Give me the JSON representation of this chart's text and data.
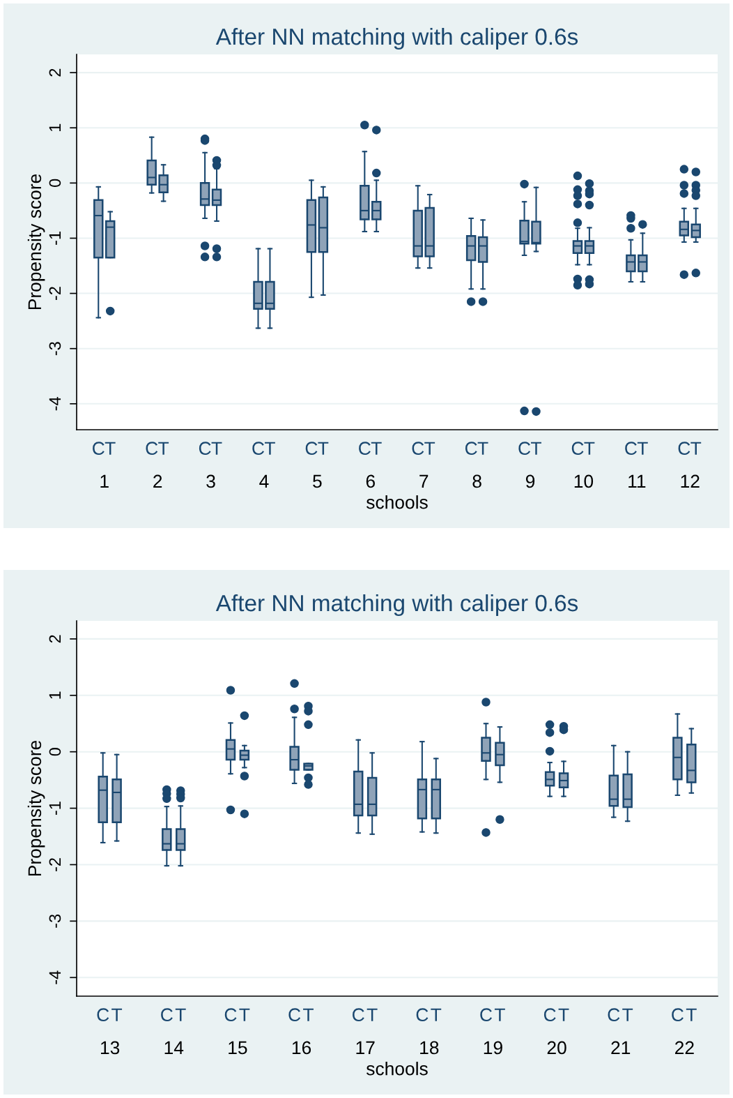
{
  "chart_data": [
    {
      "type": "box",
      "title": "After NN matching with caliper 0.6s",
      "xlabel": "schools",
      "ylabel": "Propensity score",
      "categories": [
        "1",
        "2",
        "3",
        "4",
        "5",
        "6",
        "7",
        "8",
        "9",
        "10",
        "11",
        "12"
      ],
      "ylim": [
        -4.47,
        2.33
      ],
      "yticks": [
        2,
        1,
        0,
        -1,
        -2,
        -3,
        -4
      ],
      "grid": "y",
      "marker": "circle",
      "series": [
        {
          "name": "C",
          "color": "#1a476f",
          "boxes": [
            {
              "low": -2.44,
              "q1": -1.35,
              "median": -0.59,
              "q3": -0.31,
              "high": -0.07
            },
            {
              "low": -0.18,
              "q1": -0.03,
              "median": 0.1,
              "q3": 0.41,
              "high": 0.83
            },
            {
              "low": -0.64,
              "q1": -0.4,
              "median": -0.29,
              "q3": 0.0,
              "high": 0.55,
              "outliers": [
                0.8,
                0.77,
                -1.14,
                -1.34
              ]
            },
            {
              "low": -2.63,
              "q1": -2.28,
              "median": -2.18,
              "q3": -1.79,
              "high": -1.19
            },
            {
              "low": -2.07,
              "q1": -1.25,
              "median": -0.76,
              "q3": -0.31,
              "high": 0.05
            },
            {
              "low": -0.88,
              "q1": -0.66,
              "median": -0.5,
              "q3": -0.05,
              "high": 0.57,
              "outliers": [
                1.05
              ]
            },
            {
              "low": -1.54,
              "q1": -1.33,
              "median": -1.14,
              "q3": -0.5,
              "high": -0.05
            },
            {
              "low": -1.92,
              "q1": -1.4,
              "median": -1.14,
              "q3": -0.96,
              "high": -0.64,
              "outliers": [
                -2.15
              ]
            },
            {
              "low": -1.31,
              "q1": -1.1,
              "median": -1.06,
              "q3": -0.68,
              "high": -0.34,
              "outliers": [
                -0.02,
                -4.13
              ]
            },
            {
              "low": -1.48,
              "q1": -1.27,
              "median": -1.14,
              "q3": -1.05,
              "high": -0.82,
              "outliers": [
                0.13,
                -0.12,
                -0.23,
                -0.38,
                -0.72,
                -1.74,
                -1.85
              ]
            },
            {
              "low": -1.79,
              "q1": -1.6,
              "median": -1.43,
              "q3": -1.31,
              "high": -1.03,
              "outliers": [
                -0.59,
                -0.64,
                -0.82
              ]
            },
            {
              "low": -1.07,
              "q1": -0.95,
              "median": -0.84,
              "q3": -0.7,
              "high": -0.46,
              "outliers": [
                0.25,
                -0.04,
                -0.19,
                -1.66
              ]
            }
          ]
        },
        {
          "name": "T",
          "color": "#1a476f",
          "boxes": [
            {
              "low": -1.35,
              "q1": -1.35,
              "median": -0.8,
              "q3": -0.69,
              "high": -0.52,
              "outliers": [
                -2.32
              ]
            },
            {
              "low": -0.33,
              "q1": -0.17,
              "median": -0.03,
              "q3": 0.14,
              "high": 0.33
            },
            {
              "low": -0.69,
              "q1": -0.4,
              "median": -0.31,
              "q3": -0.12,
              "high": 0.26,
              "outliers": [
                0.41,
                0.32,
                -1.19,
                -1.34
              ]
            },
            {
              "low": -2.63,
              "q1": -2.28,
              "median": -2.18,
              "q3": -1.79,
              "high": -1.19
            },
            {
              "low": -2.03,
              "q1": -1.25,
              "median": -0.81,
              "q3": -0.26,
              "high": -0.07
            },
            {
              "low": -0.88,
              "q1": -0.66,
              "median": -0.5,
              "q3": -0.34,
              "high": 0.05,
              "outliers": [
                0.96,
                0.18
              ]
            },
            {
              "low": -1.54,
              "q1": -1.33,
              "median": -1.14,
              "q3": -0.45,
              "high": -0.21
            },
            {
              "low": -1.92,
              "q1": -1.43,
              "median": -1.14,
              "q3": -0.98,
              "high": -0.67,
              "outliers": [
                -2.15
              ]
            },
            {
              "low": -1.24,
              "q1": -1.1,
              "median": -1.08,
              "q3": -0.7,
              "high": -0.08,
              "outliers": [
                -4.14
              ]
            },
            {
              "low": -1.48,
              "q1": -1.27,
              "median": -1.14,
              "q3": -1.05,
              "high": -0.81,
              "outliers": [
                -0.01,
                -0.14,
                -0.2,
                -0.4,
                -1.75,
                -1.83
              ]
            },
            {
              "low": -1.79,
              "q1": -1.6,
              "median": -1.43,
              "q3": -1.31,
              "high": -0.91,
              "outliers": [
                -0.75
              ]
            },
            {
              "low": -1.07,
              "q1": -0.98,
              "median": -0.86,
              "q3": -0.75,
              "high": -0.46,
              "outliers": [
                0.2,
                -0.04,
                -0.13,
                -0.23,
                -1.63
              ]
            }
          ]
        }
      ]
    },
    {
      "type": "box",
      "title": "After NN matching with caliper 0.6s",
      "xlabel": "schools",
      "ylabel": "Propensity score",
      "categories": [
        "13",
        "14",
        "15",
        "16",
        "17",
        "18",
        "19",
        "20",
        "21",
        "22"
      ],
      "ylim": [
        -4.33,
        2.32
      ],
      "yticks": [
        2,
        1,
        0,
        -1,
        -2,
        -3,
        -4
      ],
      "grid": "y",
      "marker": "circle",
      "series": [
        {
          "name": "C",
          "color": "#1a476f",
          "boxes": [
            {
              "low": -1.61,
              "q1": -1.25,
              "median": -0.68,
              "q3": -0.44,
              "high": -0.02
            },
            {
              "low": -2.02,
              "q1": -1.74,
              "median": -1.63,
              "q3": -1.37,
              "high": -0.97,
              "outliers": [
                -0.67,
                -0.74,
                -0.83
              ]
            },
            {
              "low": -0.39,
              "q1": -0.14,
              "median": 0.05,
              "q3": 0.21,
              "high": 0.51,
              "outliers": [
                1.09,
                -1.03
              ]
            },
            {
              "low": -0.56,
              "q1": -0.32,
              "median": -0.14,
              "q3": 0.09,
              "high": 0.61,
              "outliers": [
                1.21,
                0.76
              ]
            },
            {
              "low": -1.44,
              "q1": -1.13,
              "median": -0.93,
              "q3": -0.35,
              "high": 0.21
            },
            {
              "low": -1.42,
              "q1": -1.18,
              "median": -0.67,
              "q3": -0.49,
              "high": 0.18
            },
            {
              "low": -0.49,
              "q1": -0.16,
              "median": -0.02,
              "q3": 0.25,
              "high": 0.5,
              "outliers": [
                0.88,
                -1.43
              ]
            },
            {
              "low": -0.79,
              "q1": -0.6,
              "median": -0.49,
              "q3": -0.36,
              "high": -0.19,
              "outliers": [
                0.48,
                0.34,
                0.01
              ]
            },
            {
              "low": -1.16,
              "q1": -0.96,
              "median": -0.84,
              "q3": -0.42,
              "high": 0.11
            },
            {
              "low": -0.77,
              "q1": -0.49,
              "median": -0.1,
              "q3": 0.25,
              "high": 0.67
            }
          ]
        },
        {
          "name": "T",
          "color": "#1a476f",
          "boxes": [
            {
              "low": -1.58,
              "q1": -1.25,
              "median": -0.72,
              "q3": -0.49,
              "high": -0.05
            },
            {
              "low": -2.02,
              "q1": -1.74,
              "median": -1.63,
              "q3": -1.37,
              "high": -0.96,
              "outliers": [
                -0.69,
                -0.75,
                -0.82
              ]
            },
            {
              "low": -0.28,
              "q1": -0.14,
              "median": -0.06,
              "q3": 0.02,
              "high": 0.11,
              "outliers": [
                0.64,
                -0.43,
                -1.1
              ]
            },
            {
              "low": -0.32,
              "q1": -0.32,
              "median": -0.25,
              "q3": -0.21,
              "high": -0.21,
              "outliers": [
                0.81,
                0.72,
                0.48,
                -0.46,
                -0.58
              ]
            },
            {
              "low": -1.46,
              "q1": -1.13,
              "median": -0.93,
              "q3": -0.46,
              "high": -0.02
            },
            {
              "low": -1.44,
              "q1": -1.18,
              "median": -0.67,
              "q3": -0.49,
              "high": -0.12
            },
            {
              "low": -0.54,
              "q1": -0.24,
              "median": -0.05,
              "q3": 0.16,
              "high": 0.44,
              "outliers": [
                -1.2
              ]
            },
            {
              "low": -0.79,
              "q1": -0.63,
              "median": -0.51,
              "q3": -0.38,
              "high": -0.17,
              "outliers": [
                0.45,
                0.39
              ]
            },
            {
              "low": -1.23,
              "q1": -0.98,
              "median": -0.84,
              "q3": -0.4,
              "high": 0.0
            },
            {
              "low": -0.73,
              "q1": -0.54,
              "median": -0.33,
              "q3": 0.13,
              "high": 0.41
            }
          ]
        }
      ]
    }
  ]
}
